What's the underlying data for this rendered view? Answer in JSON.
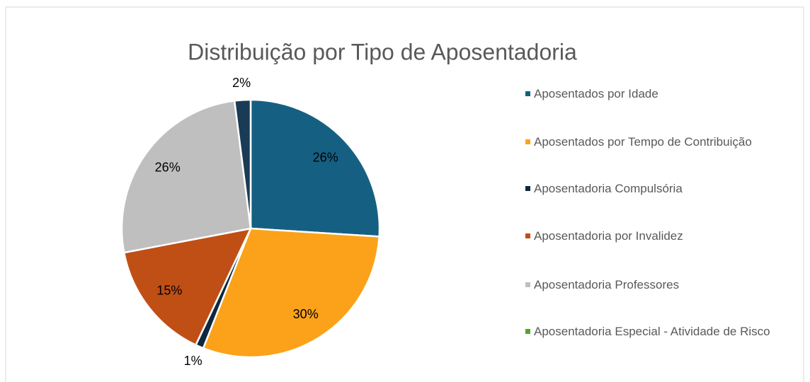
{
  "chart_data": {
    "type": "pie",
    "title": "Distribuição por Tipo de Aposentadoria",
    "categories": [
      "Aposentados por Idade",
      "Aposentados por Tempo de Contribuição",
      "Aposentadoria Compulsória",
      "Aposentadoria por Invalidez",
      "Aposentadoria Professores",
      "Aposentadoria Especial - Atividade de Risco",
      null
    ],
    "values": [
      26,
      30,
      1,
      15,
      26,
      0,
      2
    ],
    "value_labels": [
      "26%",
      "30%",
      "1%",
      "15%",
      "26%",
      null,
      "2%"
    ],
    "colors": [
      "#156082",
      "#fba21a",
      "#0e2841",
      "#c04f15",
      "#bfbfbf",
      "#4ea72e",
      "#1a3b55"
    ],
    "legend": "right"
  }
}
